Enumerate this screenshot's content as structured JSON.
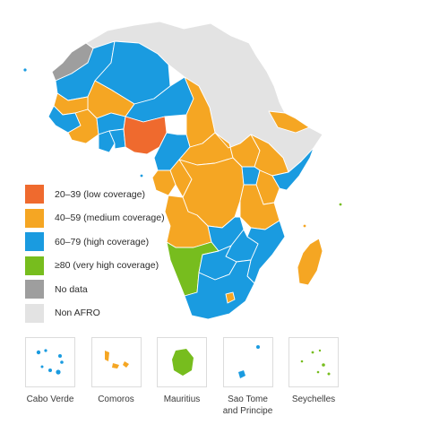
{
  "colors": {
    "low": "#ef6a2e",
    "medium": "#f5a623",
    "high": "#1a9be0",
    "very_high": "#77bd1e",
    "no_data": "#9e9e9e",
    "non_afro": "#e3e3e3",
    "border": "#ffffff"
  },
  "legend": [
    {
      "label": "20–39 (low coverage)",
      "color": "#ef6a2e",
      "icon": "swatch-low"
    },
    {
      "label": "40–59 (medium coverage)",
      "color": "#f5a623",
      "icon": "swatch-medium"
    },
    {
      "label": "60–79 (high coverage)",
      "color": "#1a9be0",
      "icon": "swatch-high"
    },
    {
      "label": "≥80 (very high coverage)",
      "color": "#77bd1e",
      "icon": "swatch-very-high"
    },
    {
      "label": "No data",
      "color": "#9e9e9e",
      "icon": "swatch-no-data"
    },
    {
      "label": "Non AFRO",
      "color": "#e3e3e3",
      "icon": "swatch-non-afro"
    }
  ],
  "insets": [
    {
      "name": "Cabo Verde",
      "category": "high"
    },
    {
      "name": "Comoros",
      "category": "medium"
    },
    {
      "name": "Mauritius",
      "category": "very_high"
    },
    {
      "name": "Sao Tome and Principe",
      "line1": "Sao Tome",
      "line2": "and Principe",
      "category": "high"
    },
    {
      "name": "Seychelles",
      "category": "very_high"
    }
  ]
}
